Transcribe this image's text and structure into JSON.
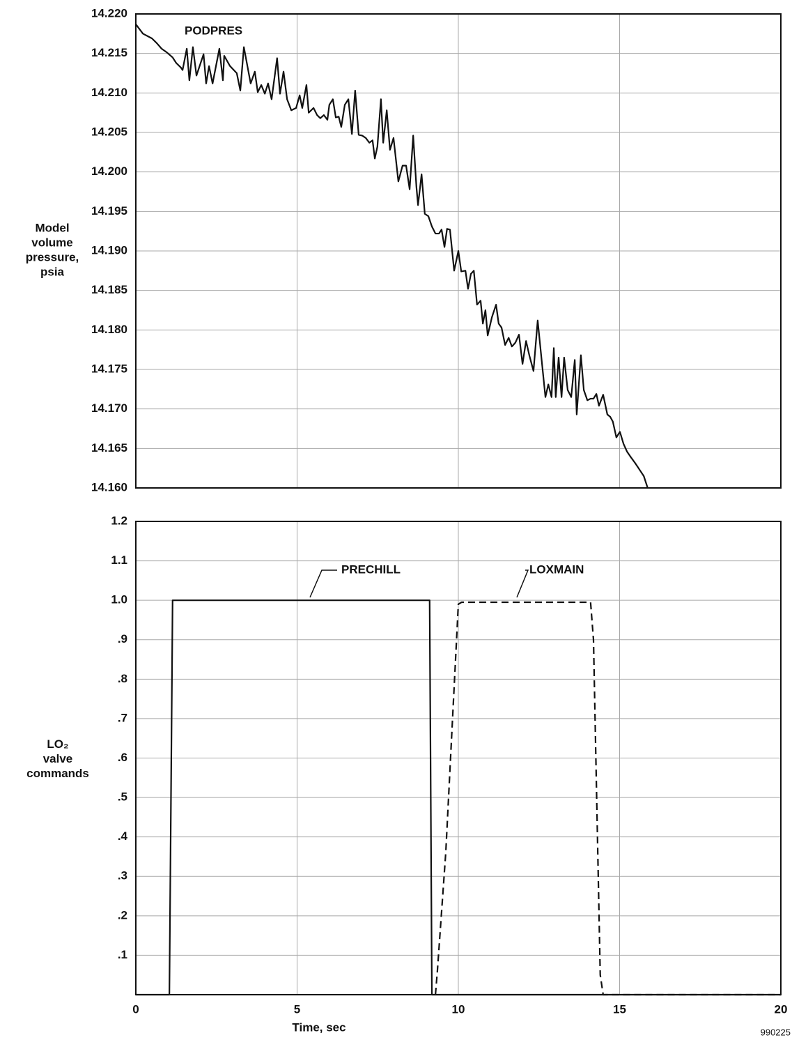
{
  "chart_data": [
    {
      "type": "line",
      "ylabel": "Model volume pressure, psia",
      "xlim": [
        0,
        20
      ],
      "xticks": [
        0,
        5,
        10,
        15,
        20
      ],
      "ylim": [
        14.16,
        14.22
      ],
      "yticks": [
        {
          "value": 14.16,
          "label": "14.160"
        },
        14.165,
        {
          "value": 14.17,
          "label": "14.170"
        },
        14.175,
        {
          "value": 14.18,
          "label": "14.180"
        },
        14.185,
        {
          "value": 14.19,
          "label": "14.190"
        },
        14.195,
        {
          "value": 14.2,
          "label": "14.200"
        },
        14.205,
        {
          "value": 14.21,
          "label": "14.210"
        },
        14.215,
        {
          "value": 14.22,
          "label": "14.220"
        }
      ],
      "grid": true,
      "series": [
        {
          "name": "PODPRES",
          "color": "#111111",
          "style": "solid",
          "x": [
            0,
            0.22,
            0.5,
            0.65,
            0.8,
            0.97,
            1.14,
            1.25,
            1.4,
            1.45,
            1.58,
            1.66,
            1.77,
            1.88,
            2.1,
            2.18,
            2.27,
            2.38,
            2.59,
            2.7,
            2.74,
            2.92,
            3.13,
            3.24,
            3.35,
            3.56,
            3.69,
            3.78,
            3.89,
            4.0,
            4.1,
            4.21,
            4.38,
            4.47,
            4.58,
            4.69,
            4.82,
            4.97,
            5.08,
            5.16,
            5.29,
            5.36,
            5.51,
            5.62,
            5.72,
            5.83,
            5.94,
            6.0,
            6.11,
            6.2,
            6.29,
            6.37,
            6.48,
            6.59,
            6.7,
            6.8,
            6.91,
            7.02,
            7.13,
            7.24,
            7.34,
            7.41,
            7.49,
            7.6,
            7.67,
            7.78,
            7.88,
            7.99,
            8.14,
            8.27,
            8.38,
            8.49,
            8.6,
            8.7,
            8.75,
            8.86,
            8.96,
            9.07,
            9.18,
            9.29,
            9.4,
            9.48,
            9.57,
            9.65,
            9.74,
            9.87,
            10.0,
            10.09,
            10.22,
            10.3,
            10.39,
            10.48,
            10.58,
            10.69,
            10.76,
            10.84,
            10.91,
            11.04,
            11.17,
            11.25,
            11.34,
            11.45,
            11.56,
            11.66,
            11.77,
            11.88,
            11.99,
            12.1,
            12.2,
            12.33,
            12.46,
            12.59,
            12.7,
            12.79,
            12.89,
            12.96,
            13.02,
            13.11,
            13.2,
            13.28,
            13.39,
            13.5,
            13.61,
            13.67,
            13.8,
            13.89,
            14.0,
            14.1,
            14.19,
            14.28,
            14.36,
            14.49,
            14.62,
            14.71,
            14.79,
            14.9,
            15.01,
            15.12,
            15.23,
            15.33,
            15.49,
            15.62,
            15.75,
            15.87
          ],
          "values": [
            14.2187,
            14.2175,
            14.2169,
            14.2163,
            14.2156,
            14.2151,
            14.2145,
            14.2138,
            14.2132,
            14.2129,
            14.2156,
            14.2116,
            14.2158,
            14.2122,
            14.2149,
            14.2112,
            14.2134,
            14.2112,
            14.2156,
            14.2116,
            14.2147,
            14.2134,
            14.2125,
            14.2103,
            14.2158,
            14.2112,
            14.2127,
            14.2101,
            14.211,
            14.2099,
            14.2112,
            14.2092,
            14.2144,
            14.2099,
            14.2127,
            14.2092,
            14.2078,
            14.2081,
            14.2097,
            14.2081,
            14.211,
            14.2075,
            14.2081,
            14.2072,
            14.2068,
            14.2072,
            14.2066,
            14.2085,
            14.2092,
            14.2069,
            14.207,
            14.2057,
            14.2085,
            14.2092,
            14.2048,
            14.2103,
            14.2047,
            14.2046,
            14.2043,
            14.2037,
            14.204,
            14.2017,
            14.2032,
            14.2092,
            14.2037,
            14.2078,
            14.2028,
            14.2043,
            14.1988,
            14.2008,
            14.2008,
            14.1978,
            14.2046,
            14.1981,
            14.1958,
            14.1997,
            14.1947,
            14.1944,
            14.1931,
            14.1922,
            14.1922,
            14.1927,
            14.1905,
            14.1928,
            14.1927,
            14.1875,
            14.19,
            14.1874,
            14.1875,
            14.1852,
            14.1871,
            14.1875,
            14.1832,
            14.1837,
            14.1808,
            14.1825,
            14.1793,
            14.1816,
            14.1832,
            14.1808,
            14.1803,
            14.1781,
            14.179,
            14.1779,
            14.1784,
            14.1794,
            14.1757,
            14.1786,
            14.1768,
            14.1748,
            14.1812,
            14.1759,
            14.1715,
            14.1731,
            14.1715,
            14.1777,
            14.1715,
            14.1765,
            14.1715,
            14.1765,
            14.1724,
            14.1715,
            14.1762,
            14.1693,
            14.1768,
            14.1724,
            14.1711,
            14.1713,
            14.1713,
            14.1719,
            14.1704,
            14.1718,
            14.1693,
            14.169,
            14.1684,
            14.1664,
            14.1671,
            14.1656,
            14.1646,
            14.164,
            14.1631,
            14.1623,
            14.1615,
            14.16
          ]
        }
      ]
    },
    {
      "type": "line",
      "xlabel": "Time, sec",
      "ylabel": "LO₂ valve commands",
      "xlim": [
        0,
        20
      ],
      "xticks": [
        0,
        5,
        10,
        15,
        20
      ],
      "ylim": [
        0,
        1.2
      ],
      "yticks": [
        {
          "value": 0.1,
          "label": ".1"
        },
        {
          "value": 0.2,
          "label": ".2"
        },
        {
          "value": 0.3,
          "label": ".3"
        },
        {
          "value": 0.4,
          "label": ".4"
        },
        {
          "value": 0.5,
          "label": ".5"
        },
        {
          "value": 0.6,
          "label": ".6"
        },
        {
          "value": 0.7,
          "label": ".7"
        },
        {
          "value": 0.8,
          "label": ".8"
        },
        {
          "value": 0.9,
          "label": ".9"
        },
        {
          "value": 1.0,
          "label": "1.0"
        },
        1.1,
        1.2
      ],
      "grid": true,
      "series": [
        {
          "name": "PRECHILL",
          "color": "#111111",
          "style": "solid",
          "x": [
            0,
            1.04,
            1.14,
            9.11,
            9.18,
            20
          ],
          "values": [
            0,
            0,
            1.0,
            1.0,
            0,
            0
          ]
        },
        {
          "name": "LOXMAIN",
          "color": "#111111",
          "style": "dashed",
          "x": [
            9.29,
            9.35,
            9.61,
            10.0,
            10.1,
            14.1,
            14.19,
            14.4,
            14.49,
            20
          ],
          "values": [
            0,
            0.06,
            0.36,
            0.99,
            0.995,
            0.995,
            0.9,
            0.05,
            0,
            0
          ]
        }
      ]
    }
  ],
  "figure_id": "990225"
}
